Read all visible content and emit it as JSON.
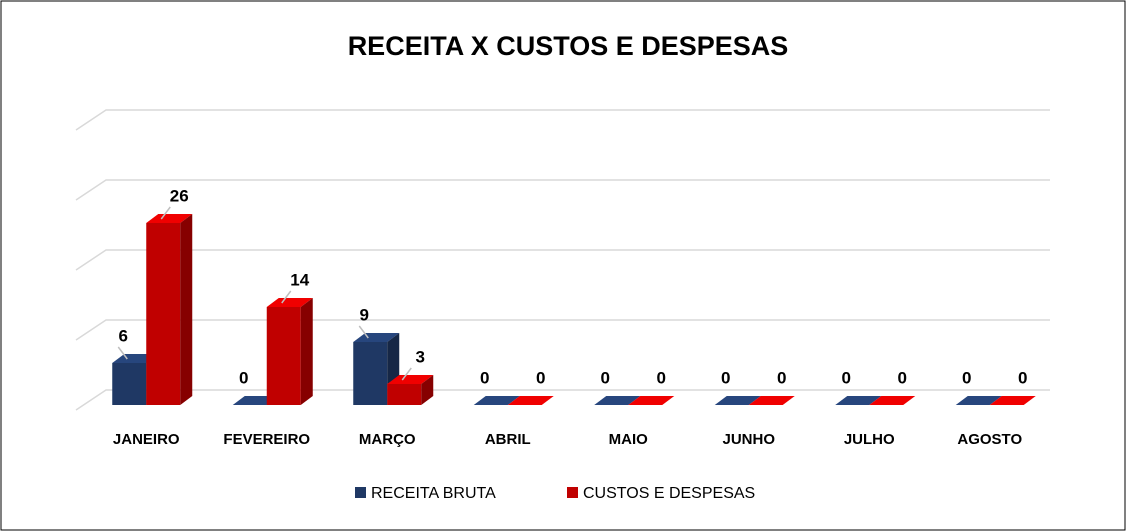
{
  "chart_data": {
    "type": "bar3d",
    "title": "RECEITA X CUSTOS E DESPESAS",
    "categories": [
      "JANEIRO",
      "FEVEREIRO",
      "MARÇO",
      "ABRIL",
      "MAIO",
      "JUNHO",
      "JULHO",
      "AGOSTO"
    ],
    "series": [
      {
        "name": "RECEITA  BRUTA",
        "color": "#1f3864",
        "values": [
          6,
          0,
          9,
          0,
          0,
          0,
          0,
          0
        ]
      },
      {
        "name": "CUSTOS E DESPESAS",
        "color": "#c00000",
        "values": [
          26,
          14,
          3,
          0,
          0,
          0,
          0,
          0
        ]
      }
    ],
    "ylim": [
      0,
      40
    ],
    "yticks": [
      0,
      10,
      20,
      30,
      40
    ],
    "grid": true,
    "legend": "bottom"
  }
}
